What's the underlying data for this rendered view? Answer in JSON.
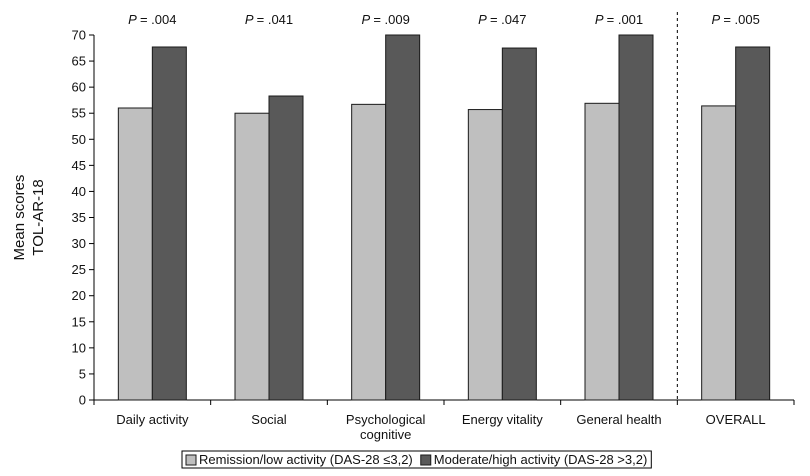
{
  "chart_data": {
    "type": "bar",
    "categories": [
      [
        "Daily activity"
      ],
      [
        "Social"
      ],
      [
        "Psychological",
        "cognitive"
      ],
      [
        "Energy vitality"
      ],
      [
        "General health"
      ],
      [
        "OVERALL"
      ]
    ],
    "series": [
      {
        "name": "Remission/low activity (DAS-28 ≤3,2)",
        "color": "#bfbfbf",
        "values": [
          56.0,
          55.0,
          56.7,
          55.7,
          56.9,
          56.4
        ]
      },
      {
        "name": "Moderate/high activity (DAS-28 >3,2)",
        "color": "#595959",
        "values": [
          67.7,
          58.3,
          70.0,
          67.5,
          70.0,
          67.7
        ]
      }
    ],
    "p_prefix": "P",
    "p_values": [
      "= .004",
      "= .041",
      "= .009",
      "= .047",
      "= .001",
      "= .005"
    ],
    "ylabel": [
      "Mean scores",
      "TOL-AR-18"
    ],
    "ylim": [
      0,
      70
    ],
    "yticks": [
      0,
      5,
      10,
      15,
      20,
      25,
      30,
      35,
      40,
      45,
      50,
      55,
      60,
      65,
      70
    ],
    "grid": false,
    "separator_before_category": 5,
    "legend_position": "bottom"
  }
}
